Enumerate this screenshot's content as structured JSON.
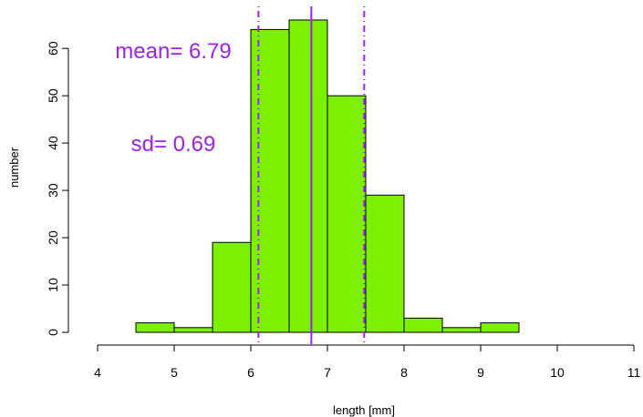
{
  "chart_data": {
    "type": "bar",
    "subtype": "histogram",
    "title": "",
    "xlabel": "length [mm]",
    "ylabel": "number",
    "xlim": [
      4,
      11
    ],
    "ylim": [
      0,
      66
    ],
    "x_ticks": [
      4,
      5,
      6,
      7,
      8,
      9,
      10,
      11
    ],
    "y_ticks": [
      0,
      10,
      20,
      30,
      40,
      50,
      60
    ],
    "bins": [
      {
        "x0": 4.5,
        "x1": 5.0,
        "count": 2
      },
      {
        "x0": 5.0,
        "x1": 5.5,
        "count": 1
      },
      {
        "x0": 5.5,
        "x1": 6.0,
        "count": 19
      },
      {
        "x0": 6.0,
        "x1": 6.5,
        "count": 64
      },
      {
        "x0": 6.5,
        "x1": 7.0,
        "count": 66
      },
      {
        "x0": 7.0,
        "x1": 7.5,
        "count": 50
      },
      {
        "x0": 7.5,
        "x1": 8.0,
        "count": 29
      },
      {
        "x0": 8.0,
        "x1": 8.5,
        "count": 3
      },
      {
        "x0": 8.5,
        "x1": 9.0,
        "count": 1
      },
      {
        "x0": 9.0,
        "x1": 9.5,
        "count": 2
      }
    ],
    "mean": 6.79,
    "sd": 0.69,
    "vertical_lines": [
      {
        "x": 6.79,
        "style": "solid"
      },
      {
        "x": 6.1,
        "style": "dotdash"
      },
      {
        "x": 7.48,
        "style": "dotdash"
      }
    ],
    "annotations": {
      "mean_text": "mean= 6.79",
      "sd_text": "sd= 0.69"
    },
    "grid": false,
    "legend": "none",
    "colors": {
      "bar_fill": "#7cf000",
      "bar_stroke": "#000000",
      "accent": "#a020f0"
    }
  }
}
